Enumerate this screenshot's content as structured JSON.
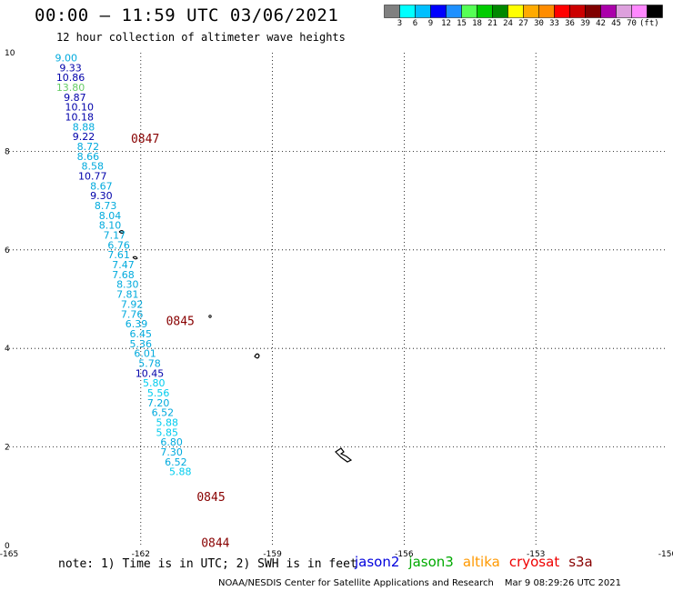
{
  "header": {
    "title": "00:00 – 11:59 UTC 03/06/2021",
    "subtitle": "12 hour collection of altimeter wave heights"
  },
  "colorbar": {
    "colors": [
      "#808080",
      "#00ffff",
      "#00bfff",
      "#0000ff",
      "#1e90ff",
      "#55ff55",
      "#00cc00",
      "#008800",
      "#ffff00",
      "#ffaa00",
      "#ff8c00",
      "#ff0000",
      "#cc0000",
      "#800000",
      "#aa00aa",
      "#dda0dd",
      "#ff88ff",
      "#000000"
    ],
    "labels": [
      "3",
      "6",
      "9",
      "12",
      "15",
      "18",
      "21",
      "24",
      "27",
      "30",
      "33",
      "36",
      "39",
      "42",
      "45",
      "70"
    ],
    "unit": "(ft)"
  },
  "chart_data": {
    "type": "scatter",
    "title": "12 hour collection of altimeter wave heights",
    "xlim": [
      -165,
      -150
    ],
    "ylim": [
      0,
      10
    ],
    "x_ticks": [
      "-165",
      "-162",
      "-159",
      "-156",
      "-153",
      "-150"
    ],
    "y_ticks": [
      "0",
      "2",
      "4",
      "6",
      "8",
      "10"
    ],
    "grid": true,
    "points": [
      {
        "lon": -163.7,
        "lat": 9.9,
        "value": "9.00",
        "color": "#00aadd"
      },
      {
        "lon": -163.6,
        "lat": 9.7,
        "value": "9.33",
        "color": "#0000aa"
      },
      {
        "lon": -163.6,
        "lat": 9.5,
        "value": "10.86",
        "color": "#0000aa"
      },
      {
        "lon": -163.6,
        "lat": 9.3,
        "value": "13.80",
        "color": "#66cc66"
      },
      {
        "lon": -163.5,
        "lat": 9.1,
        "value": "9.87",
        "color": "#0000aa"
      },
      {
        "lon": -163.4,
        "lat": 8.9,
        "value": "10.10",
        "color": "#0000aa"
      },
      {
        "lon": -163.4,
        "lat": 8.7,
        "value": "10.18",
        "color": "#0000aa"
      },
      {
        "lon": -163.3,
        "lat": 8.5,
        "value": "8.88",
        "color": "#00aadd"
      },
      {
        "lon": -163.3,
        "lat": 8.3,
        "value": "9.22",
        "color": "#0000aa"
      },
      {
        "lon": -163.2,
        "lat": 8.1,
        "value": "8.72",
        "color": "#00aadd"
      },
      {
        "lon": -163.2,
        "lat": 7.9,
        "value": "8.66",
        "color": "#00aadd"
      },
      {
        "lon": -163.1,
        "lat": 7.7,
        "value": "8.58",
        "color": "#00aadd"
      },
      {
        "lon": -163.1,
        "lat": 7.5,
        "value": "10.77",
        "color": "#0000aa"
      },
      {
        "lon": -162.9,
        "lat": 7.3,
        "value": "8.67",
        "color": "#00aadd"
      },
      {
        "lon": -162.9,
        "lat": 7.1,
        "value": "9.30",
        "color": "#0000aa"
      },
      {
        "lon": -162.8,
        "lat": 6.9,
        "value": "8.73",
        "color": "#00aadd"
      },
      {
        "lon": -162.7,
        "lat": 6.7,
        "value": "8.04",
        "color": "#00aadd"
      },
      {
        "lon": -162.7,
        "lat": 6.5,
        "value": "8.10",
        "color": "#00aadd"
      },
      {
        "lon": -162.6,
        "lat": 6.3,
        "value": "7.17",
        "color": "#00aadd"
      },
      {
        "lon": -162.5,
        "lat": 6.1,
        "value": "6.76",
        "color": "#00aadd"
      },
      {
        "lon": -162.5,
        "lat": 5.9,
        "value": "7.61",
        "color": "#00aadd"
      },
      {
        "lon": -162.4,
        "lat": 5.7,
        "value": "7.47",
        "color": "#00aadd"
      },
      {
        "lon": -162.4,
        "lat": 5.5,
        "value": "7.68",
        "color": "#00aadd"
      },
      {
        "lon": -162.3,
        "lat": 5.3,
        "value": "8.30",
        "color": "#00aadd"
      },
      {
        "lon": -162.3,
        "lat": 5.1,
        "value": "7.81",
        "color": "#00aadd"
      },
      {
        "lon": -162.2,
        "lat": 4.9,
        "value": "7.92",
        "color": "#00aadd"
      },
      {
        "lon": -162.2,
        "lat": 4.7,
        "value": "7.76",
        "color": "#00aadd"
      },
      {
        "lon": -162.1,
        "lat": 4.5,
        "value": "6.39",
        "color": "#00aadd"
      },
      {
        "lon": -162.0,
        "lat": 4.3,
        "value": "6.45",
        "color": "#00aadd"
      },
      {
        "lon": -162.0,
        "lat": 4.1,
        "value": "5.36",
        "color": "#00aadd"
      },
      {
        "lon": -161.9,
        "lat": 3.9,
        "value": "6.01",
        "color": "#00aadd"
      },
      {
        "lon": -161.8,
        "lat": 3.7,
        "value": "5.78",
        "color": "#00aadd"
      },
      {
        "lon": -161.8,
        "lat": 3.5,
        "value": "10.45",
        "color": "#0000aa"
      },
      {
        "lon": -161.7,
        "lat": 3.3,
        "value": "5.80",
        "color": "#00ccee"
      },
      {
        "lon": -161.6,
        "lat": 3.1,
        "value": "5.56",
        "color": "#00ccee"
      },
      {
        "lon": -161.6,
        "lat": 2.9,
        "value": "7.20",
        "color": "#00aadd"
      },
      {
        "lon": -161.5,
        "lat": 2.7,
        "value": "6.52",
        "color": "#00aadd"
      },
      {
        "lon": -161.4,
        "lat": 2.5,
        "value": "5.88",
        "color": "#00ccee"
      },
      {
        "lon": -161.4,
        "lat": 2.3,
        "value": "5.85",
        "color": "#00ccee"
      },
      {
        "lon": -161.3,
        "lat": 2.1,
        "value": "6.80",
        "color": "#00aadd"
      },
      {
        "lon": -161.3,
        "lat": 1.9,
        "value": "7.30",
        "color": "#00aadd"
      },
      {
        "lon": -161.2,
        "lat": 1.7,
        "value": "6.52",
        "color": "#00aadd"
      },
      {
        "lon": -161.1,
        "lat": 1.5,
        "value": "5.88",
        "color": "#00ccee"
      }
    ],
    "time_labels": [
      {
        "lon": -161.9,
        "lat": 8.25,
        "text": "0847"
      },
      {
        "lon": -161.1,
        "lat": 4.55,
        "text": "0845"
      },
      {
        "lon": -160.4,
        "lat": 0.98,
        "text": "0845"
      },
      {
        "lon": -160.3,
        "lat": 0.05,
        "text": "0844"
      }
    ]
  },
  "note": "note: 1) Time is in UTC; 2) SWH is in feet",
  "legend": [
    {
      "name": "jason2",
      "color": "#0000dd"
    },
    {
      "name": "jason3",
      "color": "#00aa00"
    },
    {
      "name": "altika",
      "color": "#ff9900"
    },
    {
      "name": "cryosat",
      "color": "#ee0000"
    },
    {
      "name": "s3a",
      "color": "#880000"
    }
  ],
  "credit": "NOAA/NESDIS Center for Satellite Applications and Research",
  "credit_time": "Mar  9 08:29:26 UTC 2021"
}
